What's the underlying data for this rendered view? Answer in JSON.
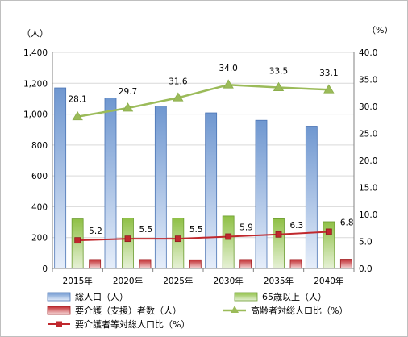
{
  "chart_data": {
    "type": "bar",
    "categories": [
      "2015年",
      "2020年",
      "2025年",
      "2030年",
      "2035年",
      "2040年"
    ],
    "left_axis": {
      "unit_label": "（人）",
      "ylim": [
        0,
        1400
      ],
      "ticks": [
        "0",
        "200",
        "400",
        "600",
        "800",
        "1,000",
        "1,200",
        "1,400"
      ]
    },
    "right_axis": {
      "unit_label": "（%）",
      "ylim": [
        0,
        40
      ],
      "ticks": [
        "0.0",
        "5.0",
        "10.0",
        "15.0",
        "20.0",
        "25.0",
        "30.0",
        "35.0",
        "40.0"
      ]
    },
    "grid": true,
    "legend_position": "bottom",
    "series": [
      {
        "name": "総人口（人）",
        "kind": "bar",
        "axis": "left",
        "color": "#4f81bd",
        "values": [
          1170,
          1105,
          1053,
          1008,
          960,
          922
        ],
        "labels": []
      },
      {
        "name": "65歳以上（人）",
        "kind": "bar",
        "axis": "left",
        "color": "#9bbb59",
        "values": [
          321,
          327,
          327,
          340,
          322,
          303
        ],
        "labels": []
      },
      {
        "name": "要介護（支援）者数（人）",
        "kind": "bar",
        "axis": "left",
        "color": "#c0504d",
        "values": [
          58,
          58,
          56,
          58,
          58,
          60
        ],
        "labels": []
      },
      {
        "name": "高齢者対総人口比（%）",
        "kind": "line",
        "axis": "right",
        "color": "#9bbb59",
        "marker": "triangle",
        "values": [
          28.1,
          29.7,
          31.6,
          34.0,
          33.5,
          33.1
        ],
        "labels": [
          "28.1",
          "29.7",
          "31.6",
          "34.0",
          "33.5",
          "33.1"
        ]
      },
      {
        "name": "要介護者等対総人口比（%）",
        "kind": "line",
        "axis": "right",
        "color": "#c0504d",
        "marker": "square",
        "values": [
          5.2,
          5.5,
          5.5,
          5.9,
          6.3,
          6.8
        ],
        "labels": [
          "5.2",
          "5.5",
          "5.5",
          "5.9",
          "6.3",
          "6.8"
        ]
      }
    ]
  }
}
